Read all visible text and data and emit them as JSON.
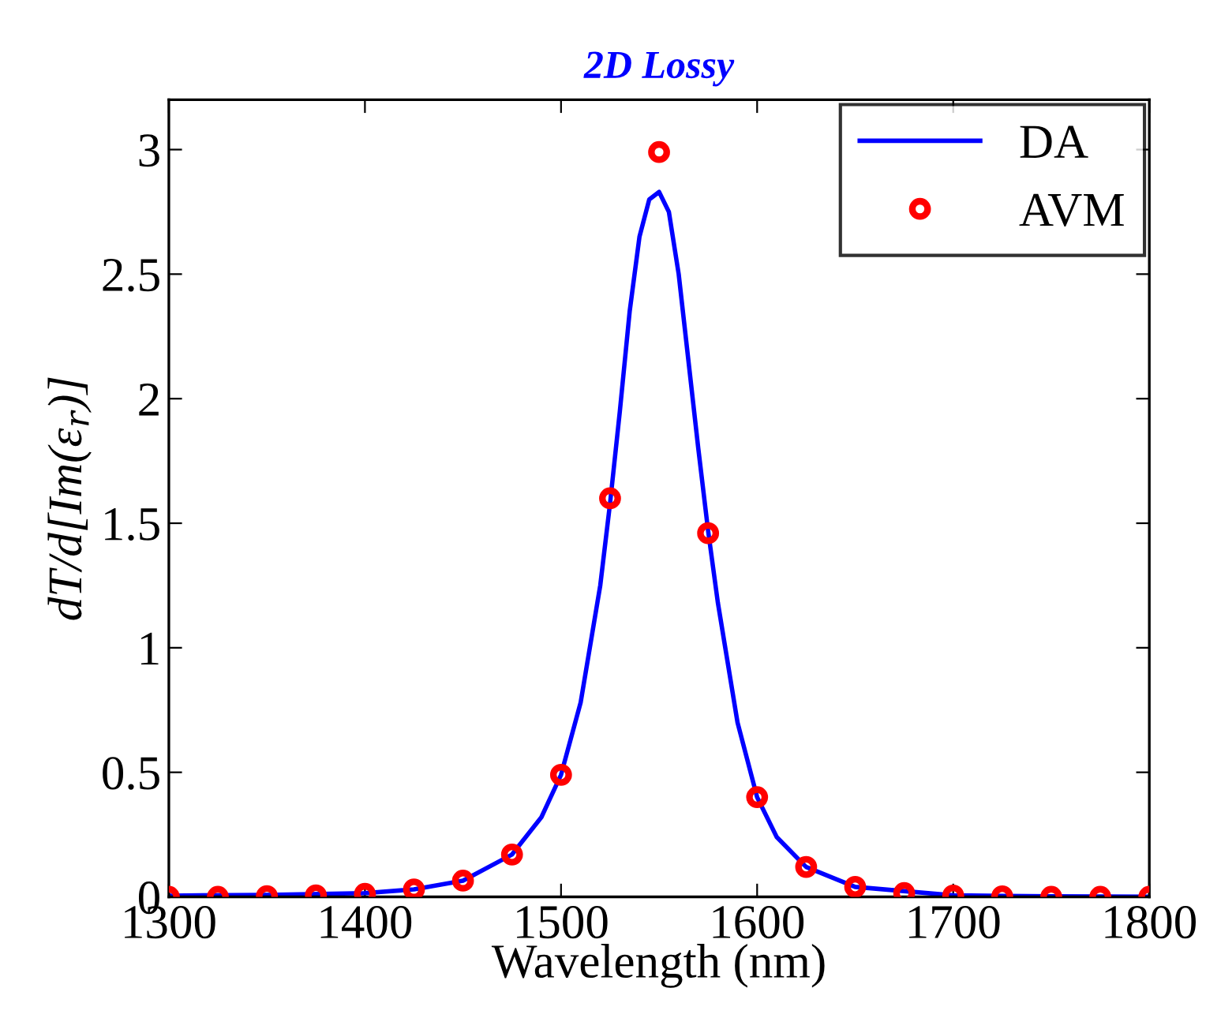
{
  "chart_data": {
    "type": "line",
    "title": "2D Lossy",
    "xlabel": "Wavelength (nm)",
    "ylabel": "dT/d[Im(ε$_{r}$)]",
    "xlim": [
      1300,
      1800
    ],
    "xticks": [
      1300,
      1400,
      1500,
      1600,
      1700,
      1800
    ],
    "ylim": [
      0,
      3.2
    ],
    "yticks": [
      0,
      0.5,
      1,
      1.5,
      2,
      2.5,
      3
    ],
    "legend": "top right",
    "grid": false,
    "series": [
      {
        "name": "DA",
        "color": "#0000ff",
        "marker": "none",
        "line_style": "solid",
        "x": [
          1300,
          1350,
          1400,
          1425,
          1450,
          1475,
          1490,
          1500,
          1510,
          1520,
          1525,
          1530,
          1535,
          1540,
          1545,
          1550,
          1555,
          1560,
          1565,
          1570,
          1575,
          1580,
          1590,
          1600,
          1610,
          1625,
          1650,
          1700,
          1750,
          1800
        ],
        "values": [
          0.005,
          0.008,
          0.015,
          0.03,
          0.065,
          0.17,
          0.32,
          0.49,
          0.78,
          1.25,
          1.58,
          1.95,
          2.35,
          2.65,
          2.8,
          2.83,
          2.75,
          2.5,
          2.15,
          1.8,
          1.47,
          1.18,
          0.7,
          0.4,
          0.24,
          0.12,
          0.04,
          0.006,
          0.002,
          0.001
        ]
      },
      {
        "name": "AVM",
        "type": "scatter",
        "color": "#ff0000",
        "marker": "circle",
        "x": [
          1300,
          1325,
          1350,
          1375,
          1400,
          1425,
          1450,
          1475,
          1500,
          1525,
          1550,
          1575,
          1600,
          1625,
          1650,
          1675,
          1700,
          1725,
          1750,
          1775,
          1800
        ],
        "values": [
          0,
          0,
          0.003,
          0.006,
          0.012,
          0.03,
          0.065,
          0.17,
          0.49,
          1.6,
          2.99,
          1.46,
          0.4,
          0.12,
          0.04,
          0.015,
          0.005,
          0.002,
          0,
          0,
          0
        ]
      }
    ]
  }
}
